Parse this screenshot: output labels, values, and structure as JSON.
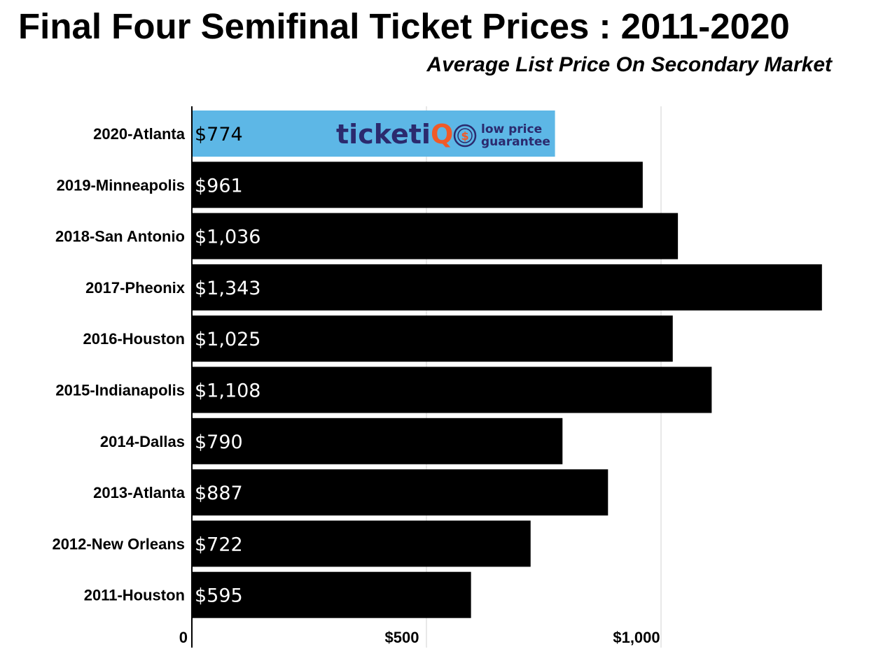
{
  "chart_data": {
    "type": "bar",
    "orientation": "horizontal",
    "title": "Final Four Semifinal Ticket Prices : 2011-2020",
    "subtitle": "Average List Price On Secondary Market",
    "categories": [
      "2020-Atlanta",
      "2019-Minneapolis",
      "2018-San Antonio",
      "2017-Pheonix",
      "2016-Houston",
      "2015-Indianapolis",
      "2014-Dallas",
      "2013-Atlanta",
      "2012-New Orleans",
      "2011-Houston"
    ],
    "values": [
      774,
      961,
      1036,
      1343,
      1025,
      1108,
      790,
      887,
      722,
      595
    ],
    "value_labels": [
      "$774",
      "$961",
      "$1,036",
      "$1,343",
      "$1,025",
      "$1,108",
      "$790",
      "$887",
      "$722",
      "$595"
    ],
    "highlight_index": 0,
    "x_ticks": [
      0,
      500,
      1000
    ],
    "x_tick_labels": [
      "0",
      "$500",
      "$1,000"
    ],
    "xlim": [
      0,
      1343
    ],
    "grid": true,
    "colors": {
      "bar": "#000000",
      "highlight": "#5db7e6",
      "grid": "#d0d0d0",
      "logo_primary": "#2b2a6e",
      "logo_accent": "#f05a28"
    }
  },
  "logo": {
    "brand_main": "ticketi",
    "brand_accent": "Q",
    "tagline_line1": "low price",
    "tagline_line2": "guarantee",
    "badge_symbol": "$"
  }
}
